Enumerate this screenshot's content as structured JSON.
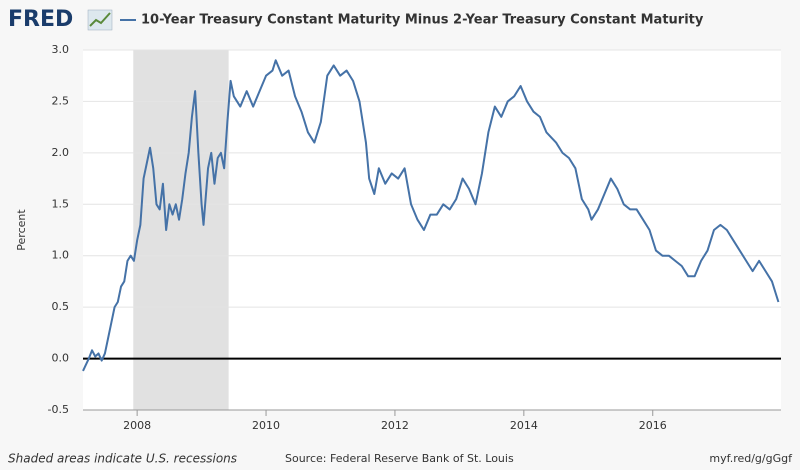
{
  "logo": "FRED",
  "footer": {
    "left": "Shaded areas indicate U.S. recessions",
    "center": "Source: Federal Reserve Bank of St. Louis",
    "right": "myf.red/g/gGgf"
  },
  "chart_data": {
    "type": "line",
    "y_label": "Percent",
    "x": [
      2007.16,
      2007.25,
      2007.3,
      2007.35,
      2007.4,
      2007.45,
      2007.5,
      2007.55,
      2007.6,
      2007.65,
      2007.7,
      2007.75,
      2007.8,
      2007.85,
      2007.9,
      2007.95,
      2008.0,
      2008.05,
      2008.1,
      2008.15,
      2008.2,
      2008.25,
      2008.3,
      2008.35,
      2008.4,
      2008.45,
      2008.5,
      2008.55,
      2008.6,
      2008.65,
      2008.7,
      2008.75,
      2008.8,
      2008.85,
      2008.9,
      2008.95,
      2009.0,
      2009.03,
      2009.1,
      2009.15,
      2009.2,
      2009.25,
      2009.3,
      2009.35,
      2009.4,
      2009.45,
      2009.5,
      2009.6,
      2009.7,
      2009.8,
      2009.9,
      2010.0,
      2010.1,
      2010.15,
      2010.25,
      2010.35,
      2010.45,
      2010.55,
      2010.65,
      2010.75,
      2010.85,
      2010.95,
      2011.05,
      2011.15,
      2011.25,
      2011.35,
      2011.45,
      2011.55,
      2011.6,
      2011.68,
      2011.75,
      2011.85,
      2011.95,
      2012.05,
      2012.15,
      2012.25,
      2012.35,
      2012.45,
      2012.55,
      2012.65,
      2012.75,
      2012.85,
      2012.95,
      2013.05,
      2013.15,
      2013.25,
      2013.35,
      2013.45,
      2013.55,
      2013.65,
      2013.75,
      2013.85,
      2013.95,
      2014.05,
      2014.15,
      2014.25,
      2014.35,
      2014.5,
      2014.6,
      2014.7,
      2014.8,
      2014.9,
      2015.0,
      2015.05,
      2015.15,
      2015.25,
      2015.35,
      2015.45,
      2015.55,
      2015.65,
      2015.75,
      2015.85,
      2015.95,
      2016.05,
      2016.15,
      2016.25,
      2016.35,
      2016.45,
      2016.55,
      2016.65,
      2016.75,
      2016.85,
      2016.95,
      2017.05,
      2017.15,
      2017.25,
      2017.35,
      2017.45,
      2017.55,
      2017.65,
      2017.75,
      2017.85,
      2017.95
    ],
    "series": [
      {
        "name": "10-Year Treasury Constant Maturity Minus 2-Year Treasury Constant Maturity",
        "color": "#4572a7",
        "values": [
          -0.12,
          0.0,
          0.08,
          0.02,
          0.05,
          -0.02,
          0.05,
          0.2,
          0.35,
          0.5,
          0.55,
          0.7,
          0.75,
          0.95,
          1.0,
          0.95,
          1.15,
          1.3,
          1.75,
          1.9,
          2.05,
          1.85,
          1.5,
          1.45,
          1.7,
          1.25,
          1.5,
          1.4,
          1.5,
          1.35,
          1.55,
          1.8,
          2.0,
          2.35,
          2.6,
          2.0,
          1.5,
          1.3,
          1.85,
          2.0,
          1.7,
          1.95,
          2.0,
          1.85,
          2.3,
          2.7,
          2.55,
          2.45,
          2.6,
          2.45,
          2.6,
          2.75,
          2.8,
          2.9,
          2.75,
          2.8,
          2.55,
          2.4,
          2.2,
          2.1,
          2.3,
          2.75,
          2.85,
          2.75,
          2.8,
          2.7,
          2.5,
          2.1,
          1.75,
          1.6,
          1.85,
          1.7,
          1.8,
          1.75,
          1.85,
          1.5,
          1.35,
          1.25,
          1.4,
          1.4,
          1.5,
          1.45,
          1.55,
          1.75,
          1.65,
          1.5,
          1.8,
          2.2,
          2.45,
          2.35,
          2.5,
          2.55,
          2.65,
          2.5,
          2.4,
          2.35,
          2.2,
          2.1,
          2.0,
          1.95,
          1.85,
          1.55,
          1.45,
          1.35,
          1.45,
          1.6,
          1.75,
          1.65,
          1.5,
          1.45,
          1.45,
          1.35,
          1.25,
          1.05,
          1.0,
          1.0,
          0.95,
          0.9,
          0.8,
          0.8,
          0.95,
          1.05,
          1.25,
          1.3,
          1.25,
          1.15,
          1.05,
          0.95,
          0.85,
          0.95,
          0.85,
          0.75,
          0.55
        ]
      }
    ],
    "recessions": [
      [
        2007.94,
        2009.42
      ]
    ],
    "recession_color": "#e1e1e1",
    "xlim": [
      2007.16,
      2017.99
    ],
    "xticks": [
      2008,
      2010,
      2012,
      2014,
      2016
    ],
    "ylim": [
      -0.5,
      3.0
    ],
    "yticks": [
      {
        "value": 3.0,
        "label": "3.0"
      },
      2.5,
      {
        "value": 2.0,
        "label": "2.0"
      },
      1.5,
      {
        "value": 1.0,
        "label": "1.0"
      },
      0.5,
      {
        "value": 0.0,
        "label": "0.0"
      },
      -0.5
    ],
    "grid": true
  }
}
